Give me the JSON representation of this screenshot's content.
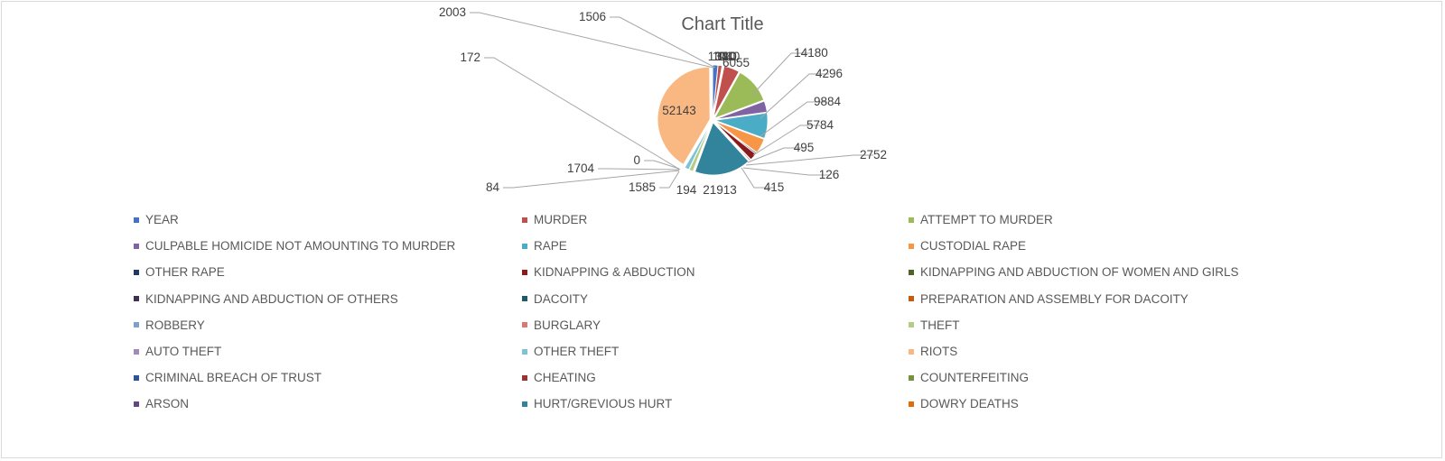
{
  "chart_data": {
    "type": "pie",
    "title": "Chart Title",
    "categories": [
      "YEAR",
      "MURDER",
      "ATTEMPT TO MURDER",
      "CULPABLE HOMICIDE NOT AMOUNTING TO MURDER",
      "RAPE",
      "CUSTODIAL RAPE",
      "OTHER RAPE",
      "KIDNAPPING & ABDUCTION",
      "KIDNAPPING AND ABDUCTION OF WOMEN AND GIRLS",
      "KIDNAPPING AND ABDUCTION OF OTHERS",
      "DACOITY",
      "PREPARATION AND ASSEMBLY FOR DACOITY",
      "ROBBERY",
      "BURGLARY",
      "THEFT",
      "AUTO THEFT",
      "OTHER THEFT",
      "RIOTS",
      "CRIMINAL BREACH OF TRUST",
      "CHEATING",
      "COUNTERFEITING",
      "ARSON",
      "HURT/GREVIOUS HURT",
      "DOWRY DEATHS"
    ],
    "colors": [
      "#4472c4",
      "#c0504d",
      "#9bbb59",
      "#8064a2",
      "#4bacc6",
      "#f79646",
      "#1f3864",
      "#8b1a1a",
      "#4f6228",
      "#3f3151",
      "#215967",
      "#c55a11",
      "#7f9fd1",
      "#d47b78",
      "#b5cc85",
      "#9f8ab8",
      "#7ec3d5",
      "#f9b882",
      "#2f5496",
      "#953735",
      "#76923c",
      "#604a7b",
      "#31849b",
      "#e36c09"
    ],
    "slices": [
      {
        "label": "YEAR",
        "value": 2003,
        "color": "#4472c4"
      },
      {
        "label": "MURDER",
        "value": 1506,
        "color": "#c0504d"
      },
      {
        "label": "ATTEMPT TO MURDER",
        "value": 134,
        "color": "#9bbb59"
      },
      {
        "label": "CULPABLE HOMICIDE NOT AMOUNTING TO MURDER",
        "value": 101,
        "color": "#8064a2"
      },
      {
        "label": "RAPE",
        "value": 120,
        "color": "#4bacc6"
      },
      {
        "label": "CUSTODIAL RAPE",
        "value": 110,
        "color": "#f79646"
      },
      {
        "label": "OTHER RAPE",
        "value": 140,
        "color": "#1f3864"
      },
      {
        "label": "KIDNAPPING & ABDUCTION",
        "value": 6055,
        "color": "#c0504d"
      },
      {
        "label": "KIDNAPPING AND ABDUCTION OF WOMEN AND GIRLS",
        "value": 14180,
        "color": "#9bbb59"
      },
      {
        "label": "KIDNAPPING AND ABDUCTION OF OTHERS",
        "value": 4296,
        "color": "#8064a2"
      },
      {
        "label": "DACOITY",
        "value": 9884,
        "color": "#4bacc6"
      },
      {
        "label": "PREPARATION AND ASSEMBLY FOR DACOITY",
        "value": 5784,
        "color": "#f79646"
      },
      {
        "label": "ROBBERY",
        "value": 495,
        "color": "#1f3864"
      },
      {
        "label": "BURGLARY",
        "value": 2752,
        "color": "#8b1a1a"
      },
      {
        "label": "THEFT",
        "value": 126,
        "color": "#4f6228"
      },
      {
        "label": "AUTO THEFT",
        "value": 415,
        "color": "#3f3151"
      },
      {
        "label": "OTHER THEFT",
        "value": 21913,
        "color": "#31849b"
      },
      {
        "label": "RIOTS",
        "value": 194,
        "color": "#c55a11"
      },
      {
        "label": "CRIMINAL BREACH OF TRUST",
        "value": 1585,
        "color": "#b5cc85"
      },
      {
        "label": "CHEATING",
        "value": 84,
        "color": "#9f8ab8"
      },
      {
        "label": "COUNTERFEITING",
        "value": 1704,
        "color": "#7ec3d5"
      },
      {
        "label": "ARSON",
        "value": 0,
        "color": "#604a7b"
      },
      {
        "label": "HURT/GREVIOUS HURT",
        "value": 52143,
        "color": "#f9b882"
      },
      {
        "label": "DOWRY DEATHS",
        "value": 172,
        "color": "#7f9fd1"
      }
    ],
    "data_labels": [
      "2003",
      "1506",
      "172",
      "1704",
      "0",
      "84",
      "1585",
      "194",
      "21913",
      "415",
      "126",
      "2752",
      "495",
      "5784",
      "9884",
      "4296",
      "14180",
      "6055",
      "52143",
      "134",
      "101",
      "120",
      "110",
      "140"
    ],
    "legend_position": "bottom",
    "grid": false
  }
}
